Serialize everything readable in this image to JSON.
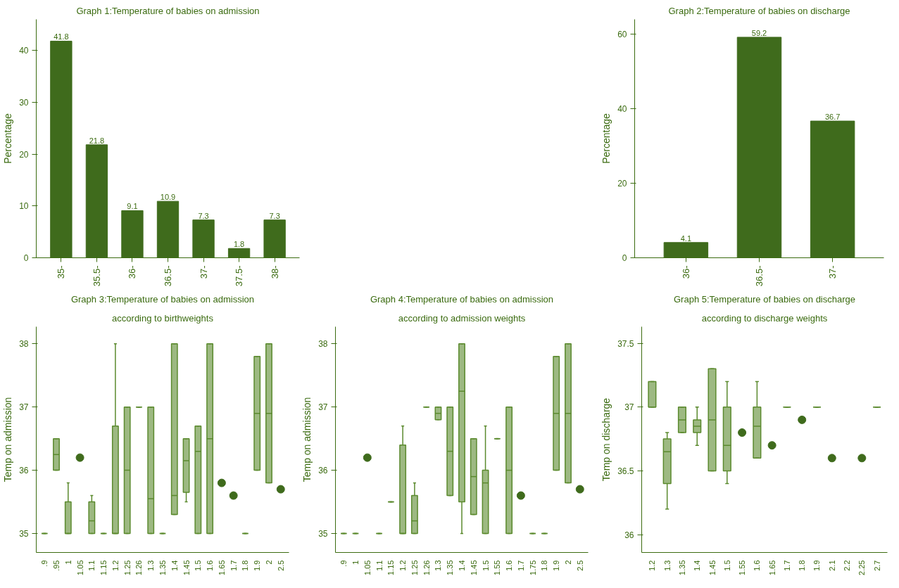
{
  "chart_data": [
    {
      "type": "bar",
      "title": "Graph 1:Temperature of babies on admission",
      "ylabel": "Percentage",
      "categories": [
        "35-",
        "35.5-",
        "36-",
        "36.5-",
        "37-",
        "37.5-",
        "38-"
      ],
      "values": [
        41.8,
        21.8,
        9.1,
        10.9,
        7.3,
        1.8,
        7.3
      ],
      "color": "#3f6b1c",
      "ylim": [
        0,
        46
      ],
      "yticks": [
        0,
        10,
        20,
        30,
        40
      ],
      "data_labels": true,
      "grid": false
    },
    {
      "type": "bar",
      "title": "Graph 2:Temperature of babies on discharge",
      "ylabel": "Percentage",
      "categories": [
        "36-",
        "36.5-",
        "37-"
      ],
      "values": [
        4.1,
        59.2,
        36.7
      ],
      "color": "#3f6b1c",
      "ylim": [
        0,
        64
      ],
      "yticks": [
        0,
        20,
        40,
        60
      ],
      "data_labels": true,
      "grid": false
    },
    {
      "type": "box",
      "title": "Graph 3:Temperature of babies on admission",
      "subtitle": "according to birthweights",
      "ylabel": "Temp on admission",
      "categories": [
        ".9",
        ".95",
        "1",
        "1.05",
        "1.1",
        "1.15",
        "1.2",
        "1.25",
        "1.26",
        "1.3",
        "1.35",
        "1.4",
        "1.45",
        "1.5",
        "1.6",
        "1.65",
        "1.7",
        "1.8",
        "1.9",
        "2",
        "2.5"
      ],
      "color": "#5b8a2e",
      "ylim": [
        34.7,
        38.27
      ],
      "yticks": [
        35,
        36,
        37,
        38
      ],
      "grid": false,
      "boxes": [
        {
          "low": 35,
          "q1": 35,
          "median": 35,
          "q3": 35,
          "high": 35
        },
        {
          "low": 36,
          "q1": 36,
          "median": 36.25,
          "q3": 36.5,
          "high": 36.5
        },
        {
          "low": 35,
          "q1": 35,
          "median": 35,
          "q3": 35.5,
          "high": 35.8
        },
        null,
        {
          "low": 35,
          "q1": 35,
          "median": 35.2,
          "q3": 35.5,
          "high": 35.6
        },
        {
          "low": 35,
          "q1": 35,
          "median": 35,
          "q3": 35,
          "high": 35
        },
        {
          "low": 35,
          "q1": 35,
          "median": 35,
          "q3": 36.7,
          "high": 38
        },
        {
          "low": 35,
          "q1": 35,
          "median": 36,
          "q3": 37,
          "high": 37
        },
        {
          "low": 37,
          "q1": 37,
          "median": 37,
          "q3": 37,
          "high": 37
        },
        {
          "low": 35,
          "q1": 35,
          "median": 35.55,
          "q3": 37,
          "high": 37
        },
        {
          "low": 35,
          "q1": 35,
          "median": 35,
          "q3": 35,
          "high": 35
        },
        {
          "low": 35.3,
          "q1": 35.3,
          "median": 35.6,
          "q3": 38,
          "high": 38
        },
        {
          "low": 35.5,
          "q1": 35.65,
          "median": 36.15,
          "q3": 36.5,
          "high": 36.5
        },
        {
          "low": 35,
          "q1": 35,
          "median": 36.3,
          "q3": 36.7,
          "high": 36.7
        },
        {
          "low": 35,
          "q1": 35,
          "median": 36.5,
          "q3": 38,
          "high": 38
        },
        null,
        null,
        {
          "low": 35,
          "q1": 35,
          "median": 35,
          "q3": 35,
          "high": 35
        },
        {
          "low": 36,
          "q1": 36,
          "median": 36.9,
          "q3": 37.8,
          "high": 37.8
        },
        {
          "low": 35.8,
          "q1": 35.8,
          "median": 36.9,
          "q3": 38,
          "high": 38
        },
        null
      ],
      "series": [
        {
          "type": "scatter",
          "color": "#3f6b1c",
          "x": [
            "1.05",
            "1.65",
            "1.7",
            "2.5"
          ],
          "values": [
            36.2,
            35.8,
            35.6,
            35.7
          ]
        }
      ]
    },
    {
      "type": "box",
      "title": "Graph 4:Temperature of babies on admission",
      "subtitle": "according to admission weights",
      "ylabel": "Temp on admission",
      "categories": [
        ".9",
        "1",
        "1.05",
        "1.1",
        "1.15",
        "1.2",
        "1.25",
        "1.26",
        "1.3",
        "1.35",
        "1.4",
        "1.45",
        "1.5",
        "1.55",
        "1.6",
        "1.7",
        "1.75",
        "1.8",
        "1.9",
        "2",
        "2.5"
      ],
      "color": "#5b8a2e",
      "ylim": [
        34.7,
        38.27
      ],
      "yticks": [
        35,
        36,
        37,
        38
      ],
      "grid": false,
      "boxes": [
        {
          "low": 35,
          "q1": 35,
          "median": 35,
          "q3": 35,
          "high": 35
        },
        {
          "low": 35,
          "q1": 35,
          "median": 35,
          "q3": 35,
          "high": 35
        },
        null,
        {
          "low": 35,
          "q1": 35,
          "median": 35,
          "q3": 35,
          "high": 35
        },
        {
          "low": 35.5,
          "q1": 35.5,
          "median": 35.5,
          "q3": 35.5,
          "high": 35.5
        },
        {
          "low": 35,
          "q1": 35,
          "median": 35,
          "q3": 36.4,
          "high": 36.7
        },
        {
          "low": 35,
          "q1": 35,
          "median": 35.2,
          "q3": 35.6,
          "high": 35.8
        },
        {
          "low": 37,
          "q1": 37,
          "median": 37,
          "q3": 37,
          "high": 37
        },
        {
          "low": 36.8,
          "q1": 36.8,
          "median": 36.9,
          "q3": 37,
          "high": 37
        },
        {
          "low": 35.6,
          "q1": 35.6,
          "median": 36.3,
          "q3": 37,
          "high": 37
        },
        {
          "low": 35,
          "q1": 35.5,
          "median": 37.25,
          "q3": 38,
          "high": 38
        },
        {
          "low": 35.3,
          "q1": 35.3,
          "median": 35.9,
          "q3": 36.5,
          "high": 36.5
        },
        {
          "low": 35,
          "q1": 35,
          "median": 35.8,
          "q3": 36,
          "high": 36.7
        },
        {
          "low": 36.5,
          "q1": 36.5,
          "median": 36.5,
          "q3": 36.5,
          "high": 36.5
        },
        {
          "low": 35,
          "q1": 35,
          "median": 36,
          "q3": 37,
          "high": 37
        },
        null,
        {
          "low": 35,
          "q1": 35,
          "median": 35,
          "q3": 35,
          "high": 35
        },
        {
          "low": 35,
          "q1": 35,
          "median": 35,
          "q3": 35,
          "high": 35
        },
        {
          "low": 36,
          "q1": 36,
          "median": 36.9,
          "q3": 37.8,
          "high": 37.8
        },
        {
          "low": 35.8,
          "q1": 35.8,
          "median": 36.9,
          "q3": 38,
          "high": 38
        },
        null
      ],
      "series": [
        {
          "type": "scatter",
          "color": "#3f6b1c",
          "x": [
            "1.05",
            "1.7",
            "2.5"
          ],
          "values": [
            36.2,
            35.6,
            35.7
          ]
        }
      ]
    },
    {
      "type": "box",
      "title": "Graph 5:Temperature of babies on discharge",
      "subtitle": "according to discharge weights",
      "ylabel": "Temp on discharge",
      "categories": [
        "1.2",
        "1.3",
        "1.35",
        "1.4",
        "1.45",
        "1.5",
        "1.55",
        "1.6",
        "1.65",
        "1.7",
        "1.8",
        "1.9",
        "2.1",
        "2.2",
        "2.25",
        "2.7"
      ],
      "color": "#5b8a2e",
      "ylim": [
        35.86,
        37.63
      ],
      "yticks": [
        36,
        36.5,
        37,
        37.5
      ],
      "grid": false,
      "boxes": [
        {
          "low": 37,
          "q1": 37,
          "median": 37,
          "q3": 37.2,
          "high": 37.2
        },
        {
          "low": 36.2,
          "q1": 36.4,
          "median": 36.65,
          "q3": 36.75,
          "high": 36.8
        },
        {
          "low": 36.8,
          "q1": 36.8,
          "median": 36.9,
          "q3": 37,
          "high": 37
        },
        {
          "low": 36.7,
          "q1": 36.8,
          "median": 36.85,
          "q3": 36.9,
          "high": 37
        },
        {
          "low": 36.5,
          "q1": 36.5,
          "median": 36.9,
          "q3": 37.3,
          "high": 37.3
        },
        {
          "low": 36.4,
          "q1": 36.5,
          "median": 36.7,
          "q3": 37,
          "high": 37.2
        },
        null,
        {
          "low": 36.6,
          "q1": 36.6,
          "median": 36.85,
          "q3": 37,
          "high": 37.2
        },
        null,
        {
          "low": 37,
          "q1": 37,
          "median": 37,
          "q3": 37,
          "high": 37
        },
        null,
        {
          "low": 37,
          "q1": 37,
          "median": 37,
          "q3": 37,
          "high": 37
        },
        null,
        null,
        null,
        {
          "low": 37,
          "q1": 37,
          "median": 37,
          "q3": 37,
          "high": 37
        }
      ],
      "series": [
        {
          "type": "scatter",
          "color": "#3f6b1c",
          "x": [
            "1.55",
            "1.65",
            "1.8",
            "2.1",
            "2.25"
          ],
          "values": [
            36.8,
            36.7,
            36.9,
            36.6,
            36.6
          ]
        }
      ]
    }
  ]
}
